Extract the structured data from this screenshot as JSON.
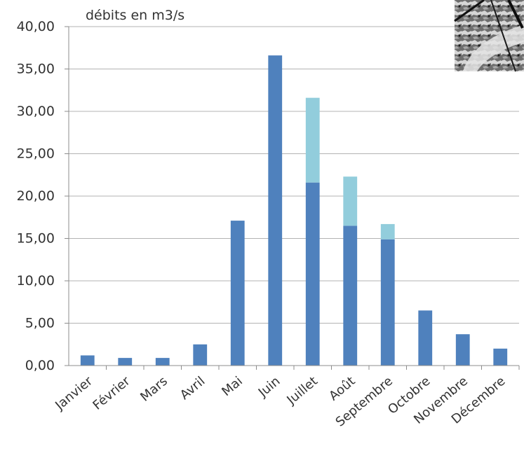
{
  "chart_data": {
    "type": "bar",
    "stacked": true,
    "title": "",
    "ylabel": "débits en m3/s",
    "xlabel": "",
    "ylim": [
      0,
      40
    ],
    "yticks": [
      0,
      5,
      10,
      15,
      20,
      25,
      30,
      35,
      40
    ],
    "ytick_labels": [
      "0,00",
      "5,00",
      "10,00",
      "15,00",
      "20,00",
      "25,00",
      "30,00",
      "35,00",
      "40,00"
    ],
    "grid": true,
    "legend": "none",
    "categories": [
      "Janvier",
      "Février",
      "Mars",
      "Avril",
      "Mai",
      "Juin",
      "Juillet",
      "Août",
      "Septembre",
      "Octobre",
      "Novembre",
      "Décembre"
    ],
    "series": [
      {
        "color": "#4f81bd",
        "values": [
          1.2,
          0.9,
          0.9,
          2.5,
          17.1,
          36.6,
          21.6,
          16.5,
          14.9,
          6.5,
          3.7,
          2.0
        ]
      },
      {
        "color": "#92cddc",
        "values": [
          0,
          0,
          0,
          0,
          0,
          0,
          10.0,
          5.8,
          1.8,
          0,
          0,
          0
        ]
      }
    ],
    "colors": {
      "grid": "#b3b3b3",
      "axis": "#8c8c8c",
      "text": "#333333"
    }
  },
  "inset_photo": {
    "description_icon": "river-photo-icon"
  }
}
